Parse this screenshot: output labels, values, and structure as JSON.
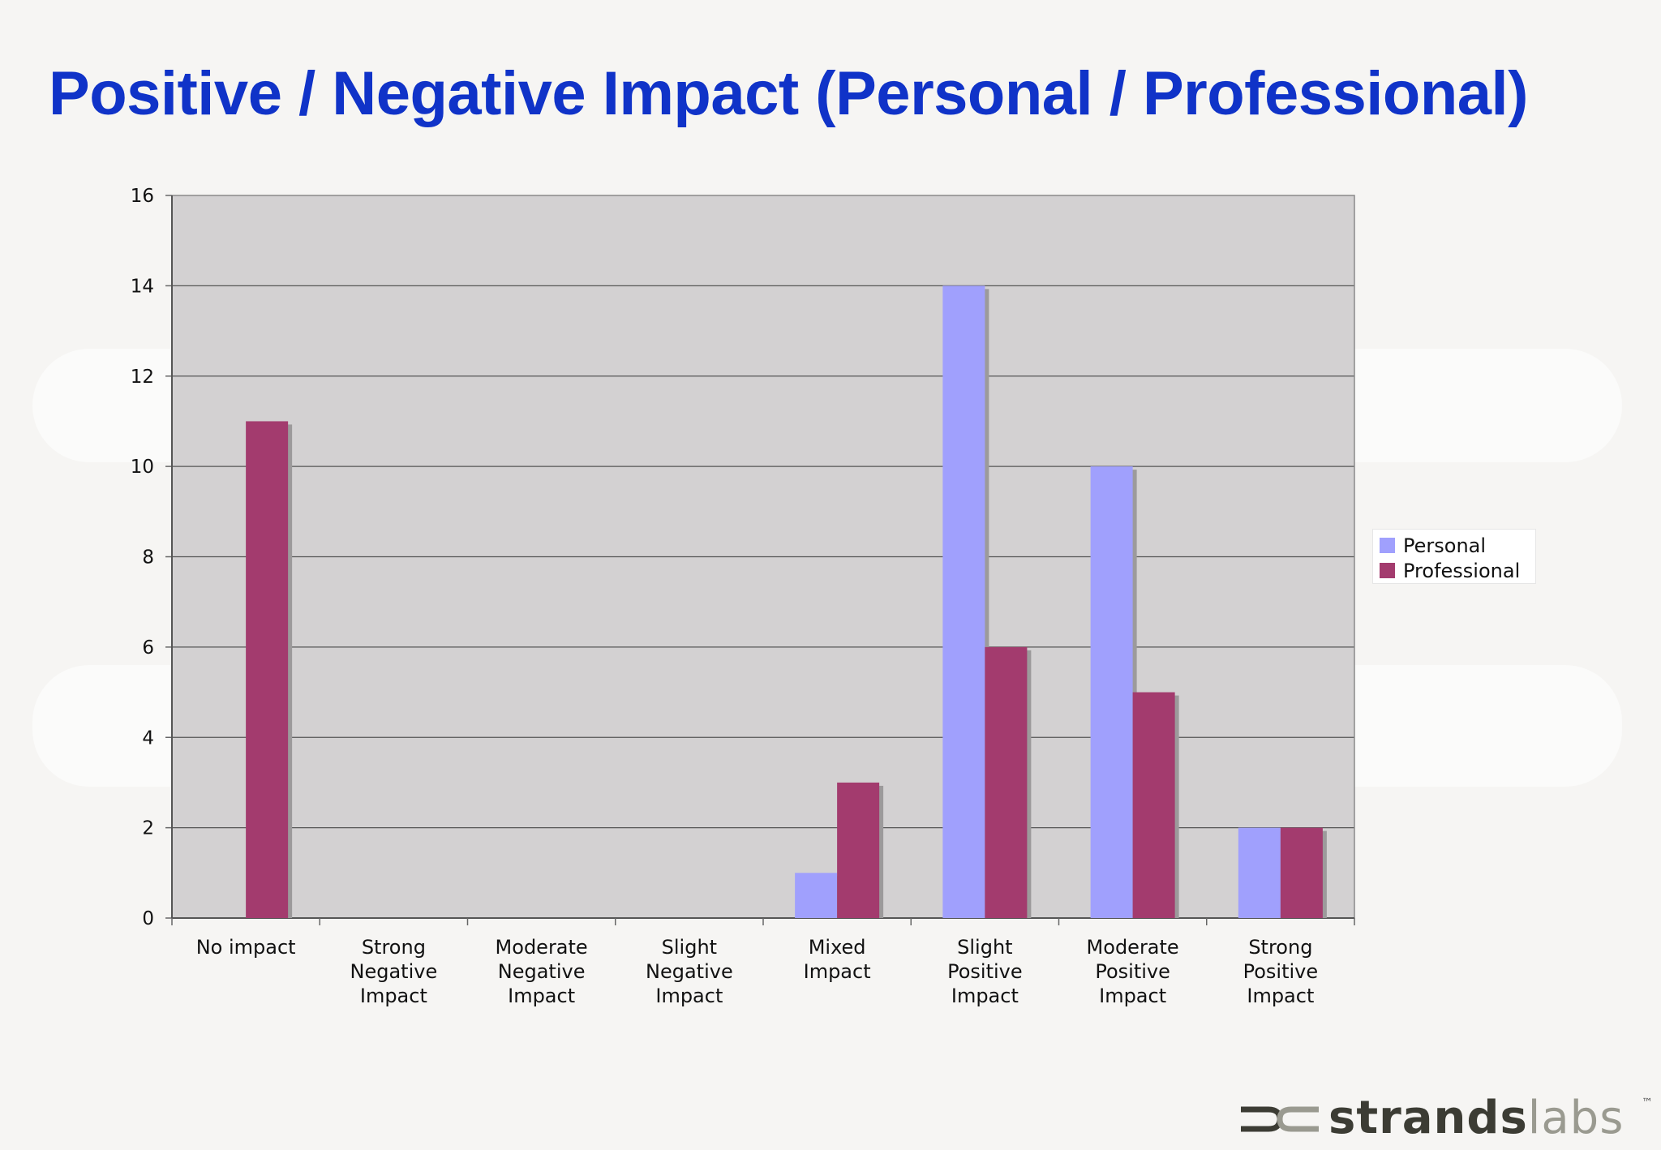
{
  "slide": {
    "title": "Positive / Negative Impact (Personal / Professional)"
  },
  "chart_data": {
    "type": "bar",
    "title": "",
    "xlabel": "",
    "ylabel": "",
    "ylim": [
      0,
      16
    ],
    "yticks": [
      0,
      2,
      4,
      6,
      8,
      10,
      12,
      14,
      16
    ],
    "grid": true,
    "legend_placement": "right",
    "plot_background": "#d3d1d2",
    "categories": [
      [
        "No impact"
      ],
      [
        "Strong",
        "Negative",
        "Impact"
      ],
      [
        "Moderate",
        "Negative",
        "Impact"
      ],
      [
        "Slight",
        "Negative",
        "Impact"
      ],
      [
        "Mixed",
        "Impact"
      ],
      [
        "Slight",
        "Positive",
        "Impact"
      ],
      [
        "Moderate",
        "Positive",
        "Impact"
      ],
      [
        "Strong",
        "Positive",
        "Impact"
      ]
    ],
    "series": [
      {
        "name": "Personal",
        "color": "#a0a0fd",
        "values": [
          0,
          0,
          0,
          0,
          1,
          14,
          10,
          2
        ]
      },
      {
        "name": "Professional",
        "color": "#a33b6e",
        "values": [
          11,
          0,
          0,
          0,
          3,
          6,
          5,
          2
        ]
      }
    ]
  },
  "logo": {
    "brand_bold": "strands",
    "brand_light": "labs",
    "tm": "™",
    "mark_icon": "strands-mark-icon"
  }
}
